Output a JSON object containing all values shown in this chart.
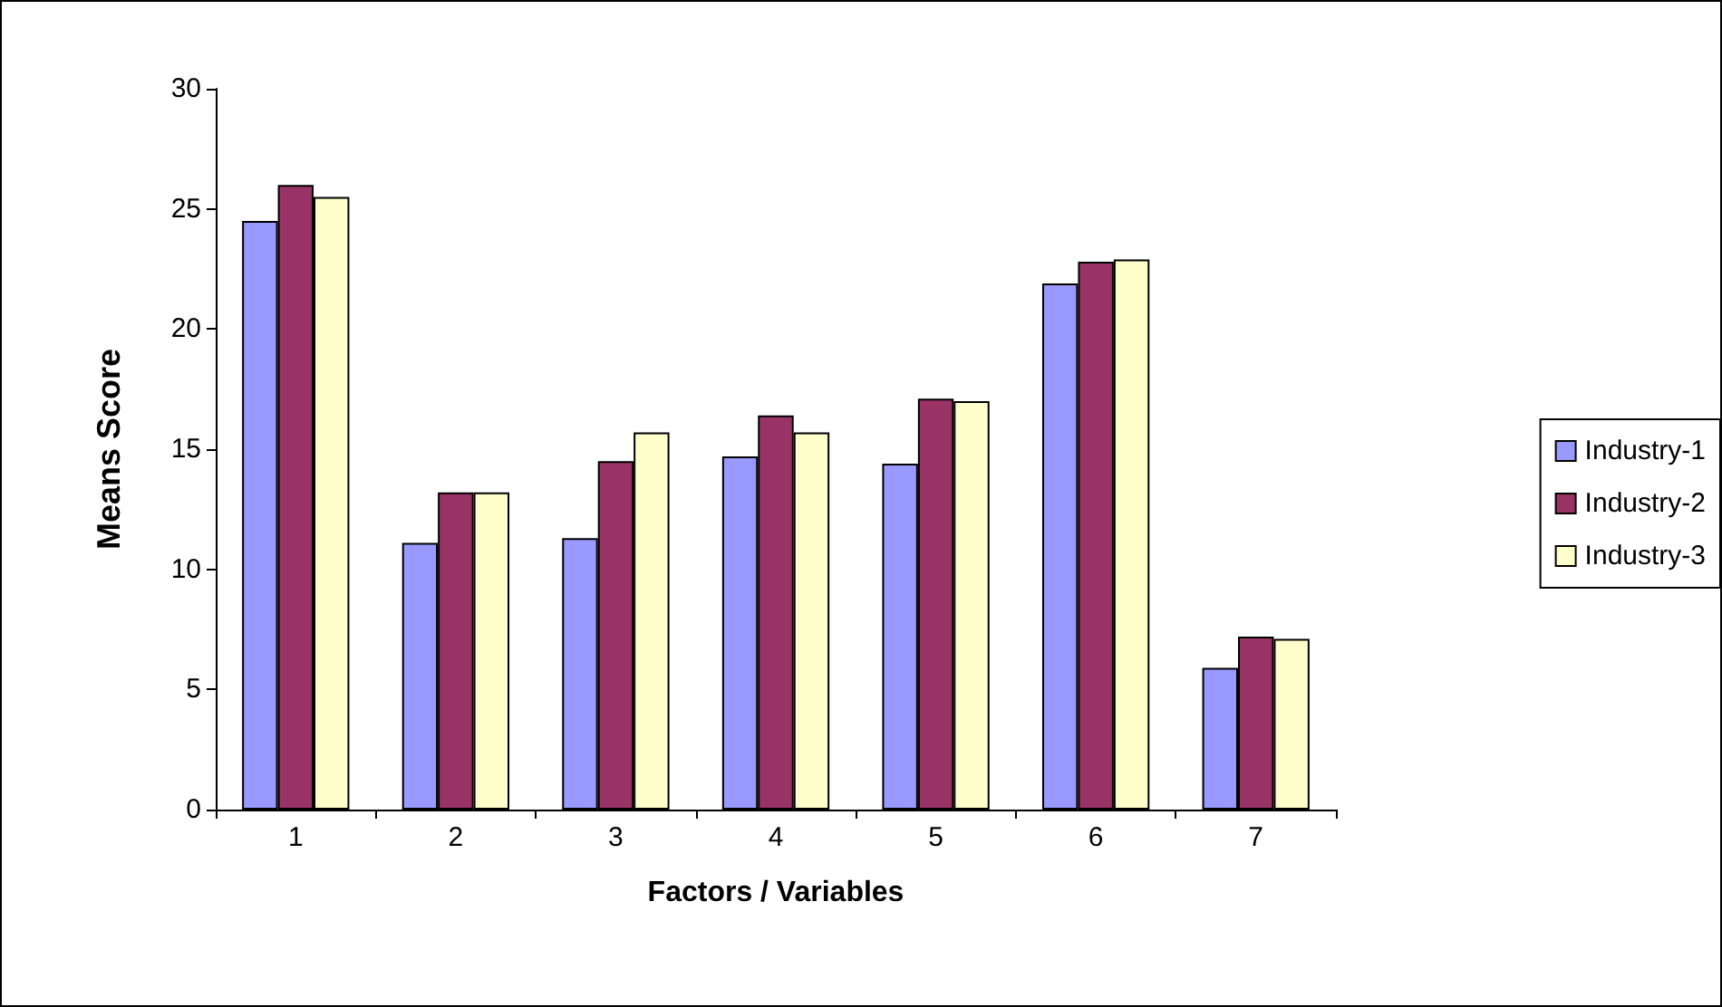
{
  "chart_data": {
    "type": "bar",
    "xlabel": "Factors / Variables",
    "ylabel": "Means Score",
    "categories": [
      "1",
      "2",
      "3",
      "4",
      "5",
      "6",
      "7"
    ],
    "series": [
      {
        "name": "Industry-1",
        "color": "#9999ff",
        "values": [
          24.5,
          11.1,
          11.3,
          14.7,
          14.4,
          21.9,
          5.9
        ]
      },
      {
        "name": "Industry-2",
        "color": "#993366",
        "values": [
          26.0,
          13.2,
          14.5,
          16.4,
          17.1,
          22.8,
          7.2
        ]
      },
      {
        "name": "Industry-3",
        "color": "#ffffcc",
        "values": [
          25.5,
          13.2,
          15.7,
          15.7,
          17.0,
          22.9,
          7.1
        ]
      }
    ],
    "ylim": [
      0,
      30
    ],
    "yticks": [
      0,
      5,
      10,
      15,
      20,
      25,
      30
    ],
    "grid": false,
    "legend": "right"
  }
}
